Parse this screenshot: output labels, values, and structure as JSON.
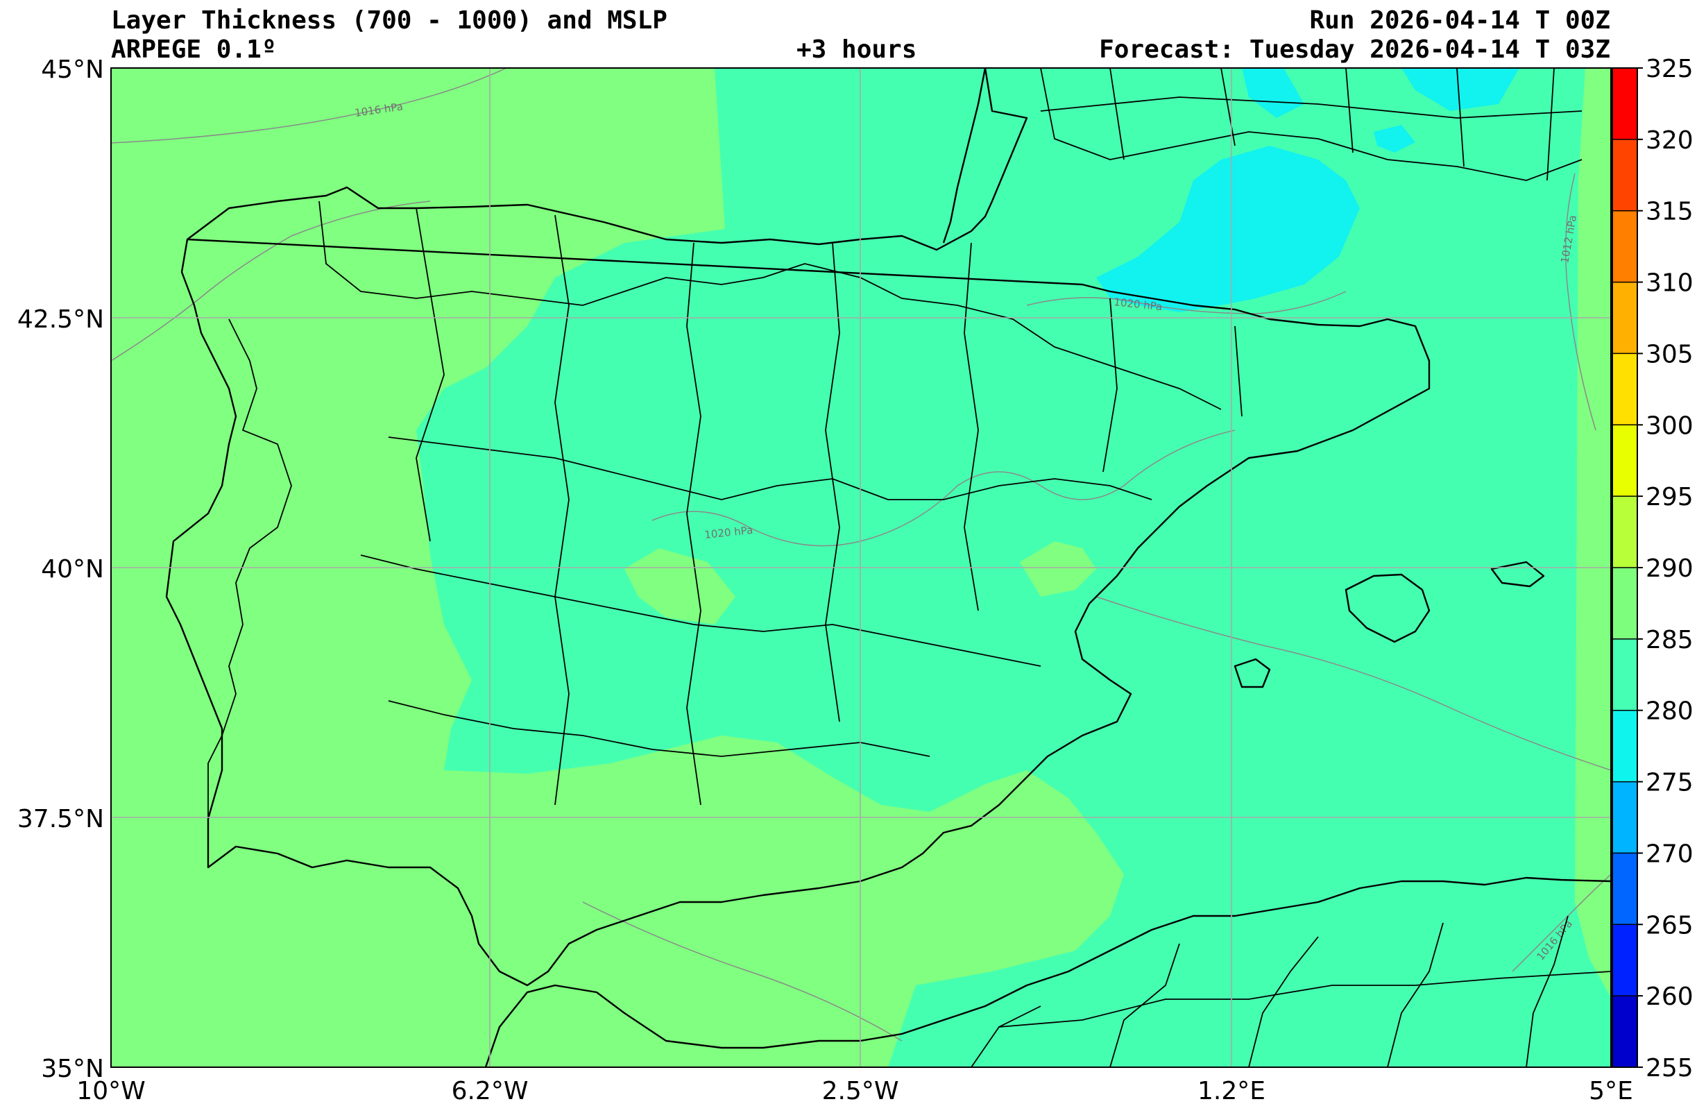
{
  "header": {
    "title": "Layer Thickness (700 - 1000) and MSLP",
    "model": "ARPEGE 0.1º",
    "lead": "+3 hours",
    "run": "Run 2026-04-14 T 00Z",
    "forecast": "Forecast: Tuesday 2026-04-14 T 03Z"
  },
  "axes": {
    "lon_ticks": [
      "10°W",
      "6.2°W",
      "2.5°W",
      "1.2°E",
      "5°E"
    ],
    "lat_ticks": [
      "45°N",
      "42.5°N",
      "40°N",
      "37.5°N",
      "35°N"
    ]
  },
  "colorbar": {
    "ticks": [
      "325",
      "320",
      "315",
      "310",
      "305",
      "300",
      "295",
      "290",
      "285",
      "280",
      "275",
      "270",
      "265",
      "260",
      "255"
    ],
    "colors": [
      "#ff0000",
      "#ff4400",
      "#ff7f00",
      "#ffb000",
      "#ffe000",
      "#e8ff00",
      "#b8ff3a",
      "#7dff7d",
      "#44ffb4",
      "#10f4ee",
      "#00b4ff",
      "#0066ff",
      "#0022ff",
      "#0000cc",
      "#00008b"
    ]
  },
  "isobar_labels": [
    "1016 hPa",
    "1020 hPa",
    "1020 hPa",
    "1012 hPa",
    "1016 hPa"
  ],
  "fill_colors": {
    "land_green": "#80ff80",
    "mint": "#45ffb0",
    "cyan": "#12f2ee",
    "deep_cyan": "#08eaf2"
  }
}
